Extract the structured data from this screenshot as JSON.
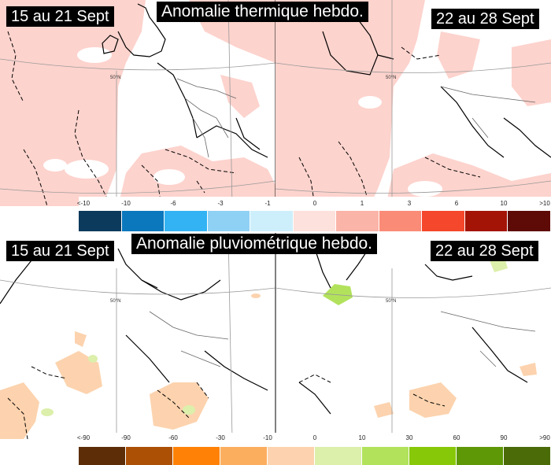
{
  "temperature": {
    "title": "Anomalie thermique hebdo.",
    "period_left": "15 au 21 Sept",
    "period_right": "22 au 28 Sept",
    "latitude_label_left": "50°N",
    "latitude_label_right": "50°N",
    "legend": {
      "labels": [
        "<-10",
        "-10",
        "-6",
        "-3",
        "-1",
        "0",
        "1",
        "3",
        "6",
        "10",
        ">10"
      ],
      "colors": [
        "#0b3a5c",
        "#0b78bd",
        "#33b3f3",
        "#8fd1f5",
        "#cdeffb",
        "#fde1dc",
        "#fbb4a8",
        "#fa8b77",
        "#f5472b",
        "#a31407",
        "#5e0a06"
      ]
    }
  },
  "precipitation": {
    "title": "Anomalie pluviométrique hebdo.",
    "period_left": "15 au 21 Sept",
    "period_right": "22 au 28 Sept",
    "latitude_label_left": "50°N",
    "latitude_label_right": "50°N",
    "legend": {
      "labels": [
        "<-90",
        "-90",
        "-60",
        "-30",
        "-10",
        "0",
        "10",
        "30",
        "60",
        "90",
        ">90"
      ],
      "colors": [
        "#5c2d07",
        "#ac5006",
        "#ff8206",
        "#fcae5f",
        "#fcd3ae",
        "#dcefab",
        "#b2e25c",
        "#87c809",
        "#5f9806",
        "#4b6b09"
      ]
    }
  }
}
